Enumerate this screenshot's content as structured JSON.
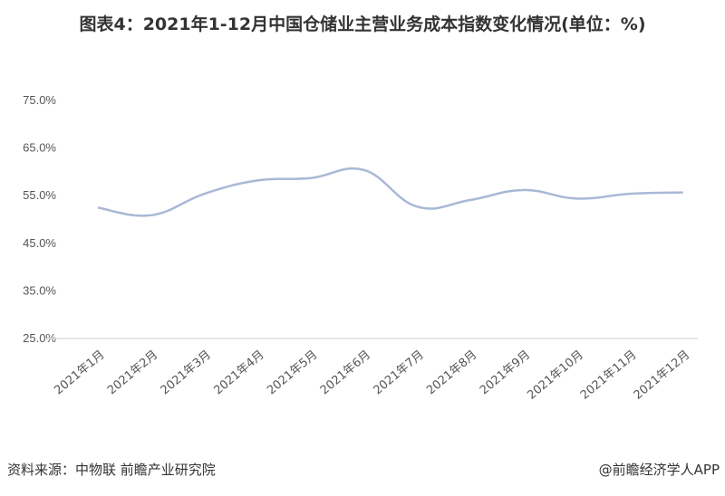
{
  "chart_data": {
    "type": "line",
    "title": "图表4：2021年1-12月中国仓储业主营业务成本指数变化情况(单位：%)",
    "xlabel": "",
    "ylabel": "",
    "categories": [
      "2021年1月",
      "2021年2月",
      "2021年3月",
      "2021年4月",
      "2021年5月",
      "2021年6月",
      "2021年7月",
      "2021年8月",
      "2021年9月",
      "2021年10月",
      "2021年11月",
      "2021年12月"
    ],
    "series": [
      {
        "values": [
          52.3,
          50.7,
          55.2,
          58.0,
          58.5,
          60.2,
          52.5,
          53.9,
          56.0,
          54.2,
          55.2,
          55.5
        ]
      }
    ],
    "ylim": [
      25,
      75
    ],
    "yticks": [
      "25.0%",
      "35.0%",
      "45.0%",
      "55.0%",
      "65.0%",
      "75.0%"
    ],
    "ytick_values": [
      25,
      35,
      45,
      55,
      65,
      75
    ],
    "grid": false,
    "line_color": "#a9b8d6",
    "smooth": true
  },
  "footer": {
    "source": "资料来源：中物联 前瞻产业研究院",
    "brand": "@前瞻经济学人APP"
  }
}
